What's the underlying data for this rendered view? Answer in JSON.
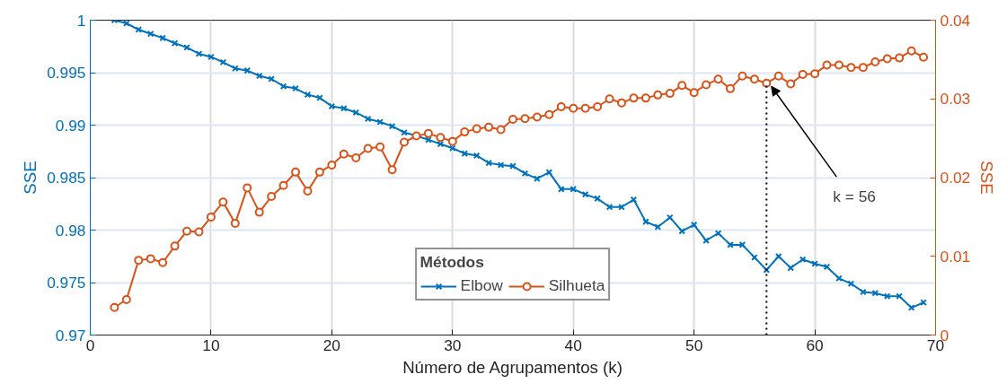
{
  "chart_data": {
    "type": "line",
    "xlabel": "Número de Agrupamentos (k)",
    "ylabel": "SSE",
    "y2label": "SSE",
    "legend_title": "Métodos",
    "x": [
      2,
      3,
      4,
      5,
      6,
      7,
      8,
      9,
      10,
      11,
      12,
      13,
      14,
      15,
      16,
      17,
      18,
      19,
      20,
      21,
      22,
      23,
      24,
      25,
      26,
      27,
      28,
      29,
      30,
      31,
      32,
      33,
      34,
      35,
      36,
      37,
      38,
      39,
      40,
      41,
      42,
      43,
      44,
      45,
      46,
      47,
      48,
      49,
      50,
      51,
      52,
      53,
      54,
      55,
      56,
      57,
      58,
      59,
      60,
      61,
      62,
      63,
      64,
      65,
      66,
      67,
      68,
      69
    ],
    "series": [
      {
        "name": "Elbow",
        "color": "#0072bd",
        "marker": "cross",
        "values": [
          1.0,
          0.9997,
          0.9991,
          0.9987,
          0.9983,
          0.9978,
          0.9974,
          0.9968,
          0.9965,
          0.996,
          0.9954,
          0.9952,
          0.9947,
          0.9944,
          0.9937,
          0.9935,
          0.9929,
          0.9926,
          0.9918,
          0.9916,
          0.9912,
          0.9906,
          0.9903,
          0.9899,
          0.9893,
          0.989,
          0.9886,
          0.9882,
          0.9878,
          0.9873,
          0.9871,
          0.9864,
          0.9862,
          0.9861,
          0.9854,
          0.9849,
          0.9855,
          0.9839,
          0.9839,
          0.9834,
          0.983,
          0.9822,
          0.9822,
          0.9829,
          0.9808,
          0.9803,
          0.9812,
          0.9799,
          0.9805,
          0.979,
          0.9797,
          0.9786,
          0.9786,
          0.9774,
          0.9762,
          0.9775,
          0.9764,
          0.9772,
          0.9768,
          0.9765,
          0.9754,
          0.9749,
          0.9741,
          0.974,
          0.9737,
          0.9737,
          0.9726,
          0.9731
        ]
      },
      {
        "name": "Silhueta",
        "color": "#d95319",
        "marker": "circle",
        "axis": "y2",
        "values": [
          0.0035,
          0.0045,
          0.0095,
          0.0097,
          0.0092,
          0.0113,
          0.0132,
          0.0131,
          0.015,
          0.0169,
          0.0142,
          0.0187,
          0.0156,
          0.0176,
          0.019,
          0.0207,
          0.0183,
          0.0207,
          0.0216,
          0.023,
          0.0225,
          0.0237,
          0.0239,
          0.021,
          0.0245,
          0.0253,
          0.0256,
          0.0251,
          0.0246,
          0.0258,
          0.0262,
          0.0264,
          0.0261,
          0.0274,
          0.0275,
          0.0277,
          0.028,
          0.029,
          0.0288,
          0.0288,
          0.029,
          0.03,
          0.0295,
          0.0301,
          0.0301,
          0.0305,
          0.0307,
          0.0317,
          0.0308,
          0.0318,
          0.0325,
          0.0313,
          0.0329,
          0.0325,
          0.032,
          0.0329,
          0.0319,
          0.0331,
          0.0332,
          0.0343,
          0.0343,
          0.034,
          0.034,
          0.0347,
          0.0351,
          0.0352,
          0.0361,
          0.0353
        ]
      }
    ],
    "xlim": [
      0,
      70
    ],
    "xticks": [
      0,
      10,
      20,
      30,
      40,
      50,
      60,
      70
    ],
    "ylim": [
      0.97,
      1
    ],
    "yticks": [
      0.97,
      0.975,
      0.98,
      0.985,
      0.99,
      0.995,
      1
    ],
    "y2lim": [
      0,
      0.04
    ],
    "y2ticks": [
      0,
      0.01,
      0.02,
      0.03,
      0.04
    ],
    "ref_lines": [
      {
        "axis": "x",
        "value": 56,
        "color": "#000000",
        "line_style": "dotted"
      }
    ],
    "annotations": [
      {
        "text": "k = 56",
        "x": 56,
        "y": 0.994
      }
    ],
    "grid": true,
    "legend": "bottom",
    "line_style": "solid"
  }
}
